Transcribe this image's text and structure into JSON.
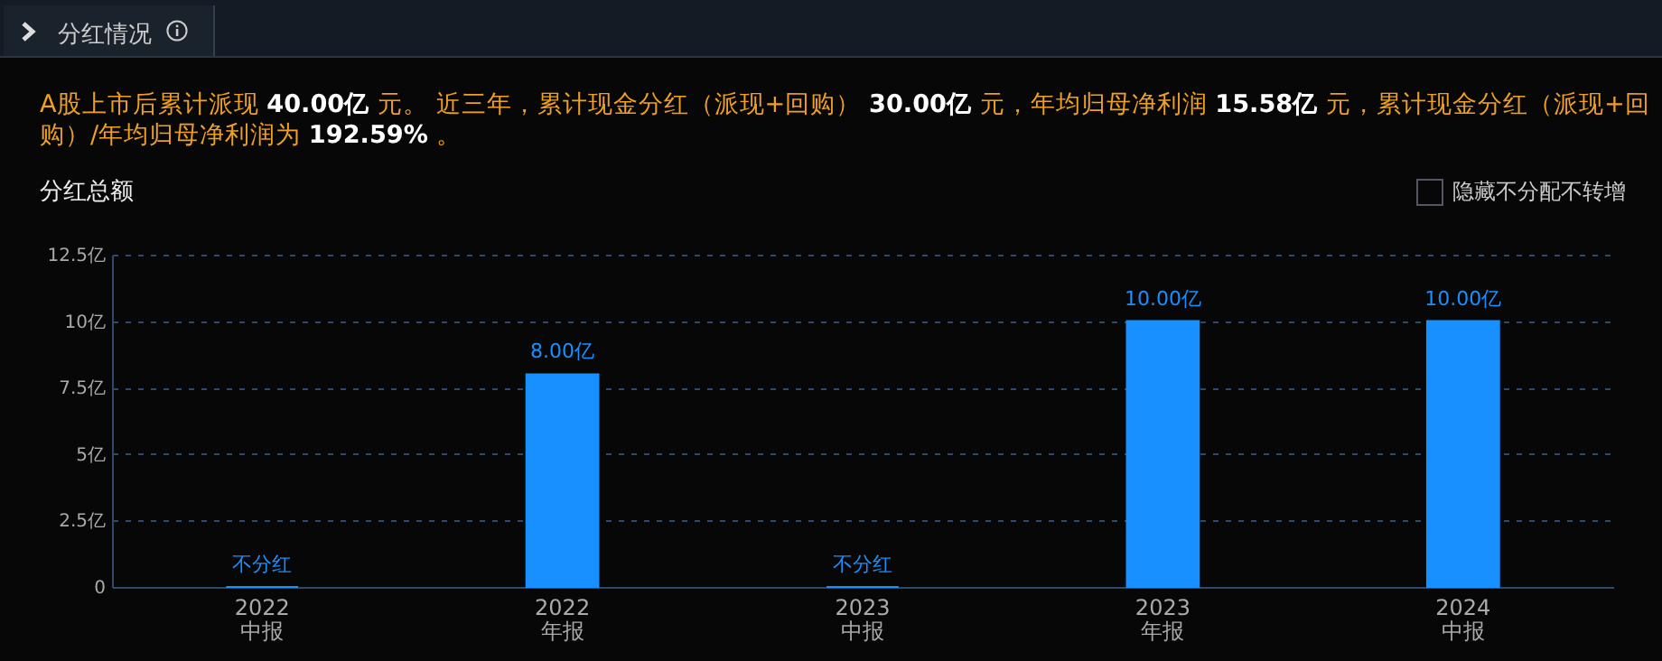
{
  "chart_data": {
    "type": "bar",
    "title": "分红总额",
    "subtitle": "A股上市后累计派现 40.00亿 元。 近三年，累计现金分红（派现+回购） 30.00亿 元，年均归母净利润 15.58亿 元，累计现金分红（派现+回购）/年均归母净利润为 192.59% 。",
    "annotations": [
      "分红情况",
      "隐藏不分配不转增"
    ],
    "categories": [
      "2022\n中报",
      "2022\n年报",
      "2023\n中报",
      "2023\n年报",
      "2024\n中报"
    ],
    "values": [
      0,
      8,
      0,
      10,
      10
    ],
    "value_labels": [
      "不分红",
      "8.00亿",
      "不分红",
      "10.00亿",
      "10.00亿"
    ],
    "color": "#1890ff",
    "ylim": [
      0,
      12.5
    ],
    "yticks": [
      0,
      {
        "value": 2.5,
        "label": "2.5亿"
      },
      {
        "value": 5,
        "label": "5亿"
      },
      {
        "value": 7.5,
        "label": "7.5亿"
      },
      {
        "value": 10,
        "label": "10亿"
      },
      {
        "value": 12.5,
        "label": "12.5亿"
      }
    ],
    "grid": "y"
  }
}
